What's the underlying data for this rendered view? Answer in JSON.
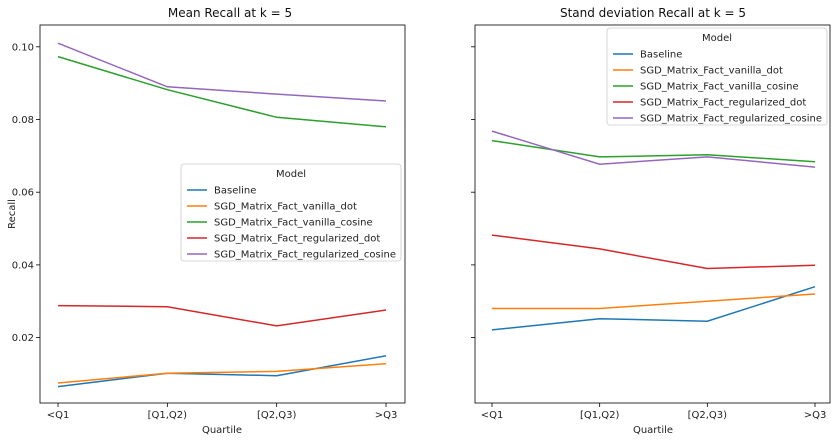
{
  "chart_data": [
    {
      "type": "line",
      "title": "Mean Recall at k = 5",
      "xlabel": "Quartile",
      "ylabel": "Recall",
      "categories": [
        "<Q1",
        "[Q1,Q2)",
        "[Q2,Q3)",
        ">Q3"
      ],
      "ylim": [
        0.002,
        0.106
      ],
      "yticks": [
        0.02,
        0.04,
        0.06,
        0.08,
        0.1
      ],
      "ytick_labels": [
        "0.02",
        "0.04",
        "0.06",
        "0.08",
        "0.10"
      ],
      "grid": false,
      "legend": {
        "title": "Model",
        "placement": "center-right"
      },
      "series": [
        {
          "name": "Baseline",
          "color": "#1f77b4",
          "values": [
            0.0065,
            0.0102,
            0.0095,
            0.015
          ]
        },
        {
          "name": "SGD_Matrix_Fact_vanilla_dot",
          "color": "#ff7f0e",
          "values": [
            0.0075,
            0.0102,
            0.0107,
            0.0128
          ]
        },
        {
          "name": "SGD_Matrix_Fact_vanilla_cosine",
          "color": "#2ca02c",
          "values": [
            0.0973,
            0.0882,
            0.0806,
            0.078
          ]
        },
        {
          "name": "SGD_Matrix_Fact_regularized_dot",
          "color": "#d62728",
          "values": [
            0.0288,
            0.0285,
            0.0232,
            0.0276
          ]
        },
        {
          "name": "SGD_Matrix_Fact_regularized_cosine",
          "color": "#9467bd",
          "values": [
            0.101,
            0.089,
            0.087,
            0.0851
          ]
        }
      ]
    },
    {
      "type": "line",
      "title": "Stand deviation Recall at k = 5",
      "xlabel": "Quartile",
      "ylabel": "",
      "categories": [
        "<Q1",
        "[Q1,Q2)",
        "[Q2,Q3)",
        ">Q3"
      ],
      "ylim": [
        0.002,
        0.106
      ],
      "yticks": [
        0.02,
        0.04,
        0.06,
        0.08,
        0.1
      ],
      "ytick_labels": [],
      "grid": false,
      "legend": {
        "title": "Model",
        "placement": "top-right"
      },
      "series": [
        {
          "name": "Baseline",
          "color": "#1f77b4",
          "values": [
            0.0221,
            0.0252,
            0.0245,
            0.034
          ]
        },
        {
          "name": "SGD_Matrix_Fact_vanilla_dot",
          "color": "#ff7f0e",
          "values": [
            0.028,
            0.028,
            0.03,
            0.032
          ]
        },
        {
          "name": "SGD_Matrix_Fact_vanilla_cosine",
          "color": "#2ca02c",
          "values": [
            0.0742,
            0.0697,
            0.0703,
            0.0684
          ]
        },
        {
          "name": "SGD_Matrix_Fact_regularized_dot",
          "color": "#d62728",
          "values": [
            0.0482,
            0.0444,
            0.039,
            0.0399
          ]
        },
        {
          "name": "SGD_Matrix_Fact_regularized_cosine",
          "color": "#9467bd",
          "values": [
            0.0768,
            0.0677,
            0.0697,
            0.0669
          ]
        }
      ]
    }
  ]
}
